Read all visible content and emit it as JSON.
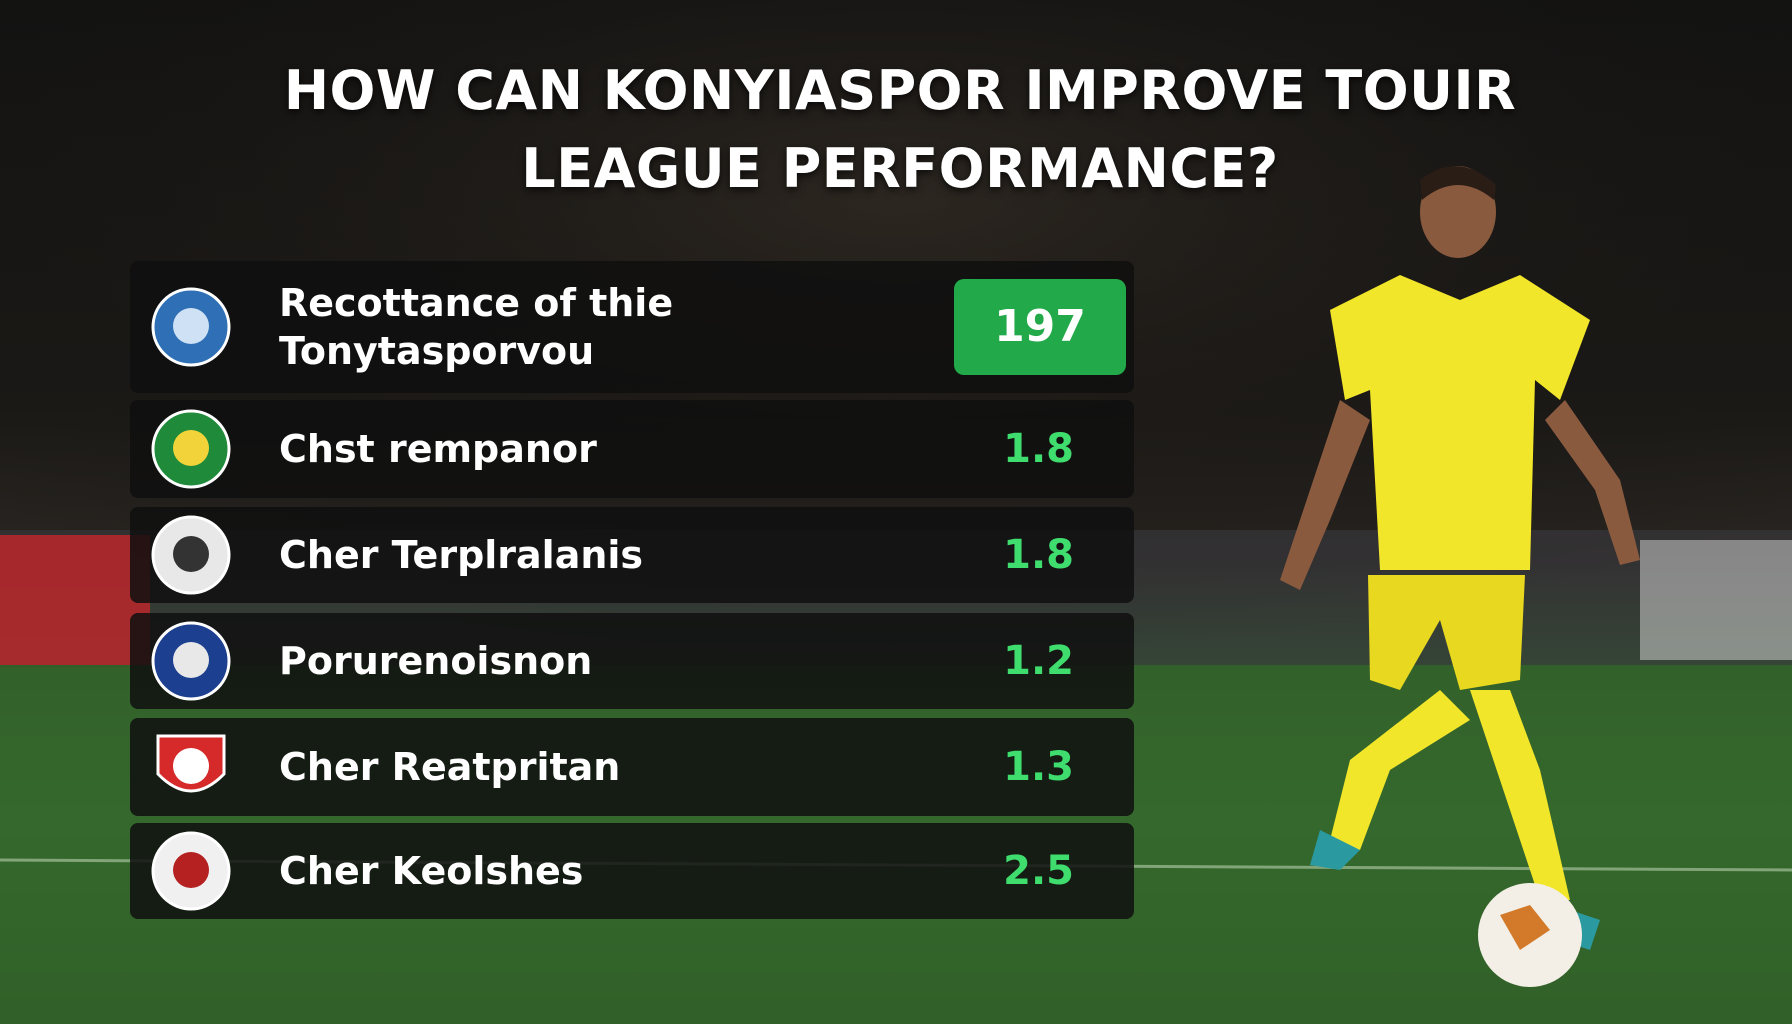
{
  "header": {
    "title": "HOW CAN KONYIASPOR IMPROVE TOUIR LEAGUE PERFORMANCE?"
  },
  "rows": [
    {
      "label": "Recottance of thie Tonytasporvou",
      "value": "197"
    },
    {
      "label": "Chst rempanor",
      "value": "1.8"
    },
    {
      "label": "Cher Terplralanis",
      "value": "1.8"
    },
    {
      "label": "Porurenoisnon",
      "value": "1.2"
    },
    {
      "label": "Cher Reatpritan",
      "value": "1.3"
    },
    {
      "label": "Cher Keolshes",
      "value": "2.5"
    }
  ]
}
